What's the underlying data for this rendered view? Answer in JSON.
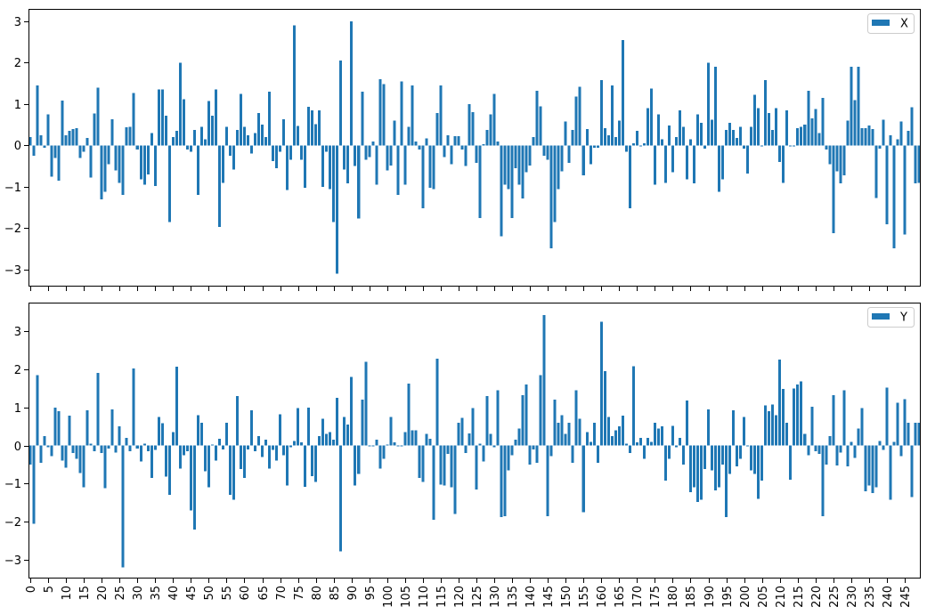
{
  "figure": {
    "background": "#ffffff"
  },
  "chart_data": [
    {
      "type": "bar",
      "grid": false,
      "legend": "top-right",
      "categories": [
        0,
        1,
        2,
        3,
        4,
        5,
        6,
        7,
        8,
        9,
        10,
        11,
        12,
        13,
        14,
        15,
        16,
        17,
        18,
        19,
        20,
        21,
        22,
        23,
        24,
        25,
        26,
        27,
        28,
        29,
        30,
        31,
        32,
        33,
        34,
        35,
        36,
        37,
        38,
        39,
        40,
        41,
        42,
        43,
        44,
        45,
        46,
        47,
        48,
        49,
        50,
        51,
        52,
        53,
        54,
        55,
        56,
        57,
        58,
        59,
        60,
        61,
        62,
        63,
        64,
        65,
        66,
        67,
        68,
        69,
        70,
        71,
        72,
        73,
        74,
        75,
        76,
        77,
        78,
        79,
        80,
        81,
        82,
        83,
        84,
        85,
        86,
        87,
        88,
        89,
        90,
        91,
        92,
        93,
        94,
        95,
        96,
        97,
        98,
        99,
        100,
        101,
        102,
        103,
        104,
        105,
        106,
        107,
        108,
        109,
        110,
        111,
        112,
        113,
        114,
        115,
        116,
        117,
        118,
        119,
        120,
        121,
        122,
        123,
        124,
        125,
        126,
        127,
        128,
        129,
        130,
        131,
        132,
        133,
        134,
        135,
        136,
        137,
        138,
        139,
        140,
        141,
        142,
        143,
        144,
        145,
        146,
        147,
        148,
        149,
        150,
        151,
        152,
        153,
        154,
        155,
        156,
        157,
        158,
        159,
        160,
        161,
        162,
        163,
        164,
        165,
        166,
        167,
        168,
        169,
        170,
        171,
        172,
        173,
        174,
        175,
        176,
        177,
        178,
        179,
        180,
        181,
        182,
        183,
        184,
        185,
        186,
        187,
        188,
        189,
        190,
        191,
        192,
        193,
        194,
        195,
        196,
        197,
        198,
        199,
        200,
        201,
        202,
        203,
        204,
        205,
        206,
        207,
        208,
        209,
        210,
        211,
        212,
        213,
        214,
        215,
        216,
        217,
        218,
        219,
        220,
        221,
        222,
        223,
        224,
        225,
        226,
        227,
        228,
        229,
        230,
        231,
        232,
        233,
        234,
        235,
        236,
        237,
        238,
        239,
        240,
        241,
        242,
        243,
        244,
        245,
        246,
        247,
        248,
        249
      ],
      "series": [
        {
          "name": "X",
          "color": "#1f77b4",
          "values": [
            0.2,
            -0.25,
            1.45,
            0.25,
            -0.05,
            0.75,
            -0.75,
            -0.3,
            -0.85,
            1.08,
            0.25,
            0.35,
            0.4,
            0.42,
            -0.3,
            -0.15,
            0.18,
            -0.78,
            0.77,
            1.4,
            -1.3,
            -1.12,
            -0.45,
            0.63,
            -0.6,
            -0.9,
            -1.2,
            0.44,
            0.45,
            1.27,
            -0.1,
            -0.82,
            -0.95,
            -0.7,
            0.3,
            -0.98,
            1.35,
            1.35,
            0.72,
            -1.85,
            0.2,
            0.35,
            2.0,
            1.12,
            -0.1,
            -0.15,
            0.37,
            -1.2,
            0.45,
            0.15,
            1.07,
            0.72,
            1.35,
            -1.97,
            -0.9,
            0.45,
            -0.25,
            -0.58,
            0.37,
            1.25,
            0.45,
            0.25,
            -0.2,
            0.3,
            0.78,
            0.5,
            0.2,
            1.3,
            -0.38,
            -0.55,
            -0.15,
            0.63,
            -1.08,
            -0.35,
            2.9,
            0.47,
            -0.35,
            -1.02,
            0.93,
            0.85,
            0.52,
            0.85,
            -1.0,
            -0.15,
            -1.05,
            -1.85,
            -3.1,
            2.05,
            -0.58,
            -0.92,
            3.0,
            -0.5,
            -1.77,
            1.3,
            -0.35,
            -0.28,
            0.1,
            -0.95,
            1.6,
            1.48,
            -0.6,
            -0.48,
            0.6,
            -1.2,
            1.55,
            -0.95,
            0.45,
            1.45,
            0.1,
            -0.1,
            -1.52,
            0.17,
            -1.02,
            -1.05,
            0.78,
            1.45,
            -0.28,
            0.25,
            -0.45,
            0.22,
            0.22,
            -0.1,
            -0.5,
            1.0,
            0.8,
            -0.42,
            -1.75,
            0.03,
            0.38,
            0.75,
            1.25,
            0.1,
            -2.2,
            -0.95,
            -1.05,
            -1.75,
            -0.55,
            -0.95,
            -1.28,
            -0.65,
            -0.48,
            0.2,
            1.32,
            0.95,
            -0.25,
            -0.35,
            -2.48,
            -1.85,
            -1.05,
            -0.62,
            0.58,
            -0.42,
            0.38,
            1.18,
            1.42,
            -0.72,
            0.4,
            -0.45,
            -0.05,
            -0.05,
            1.58,
            0.42,
            0.25,
            1.45,
            0.2,
            0.6,
            2.55,
            -0.15,
            -1.52,
            0.05,
            0.35,
            -0.02,
            0.05,
            0.9,
            1.37,
            -0.95,
            0.75,
            0.15,
            -0.9,
            0.48,
            -0.65,
            0.2,
            0.85,
            0.45,
            -0.82,
            0.15,
            -0.92,
            0.75,
            0.55,
            -0.08,
            2.0,
            0.62,
            1.9,
            -1.12,
            -0.82,
            0.38,
            0.55,
            0.38,
            0.18,
            0.45,
            -0.08,
            -0.68,
            0.45,
            1.22,
            0.9,
            -0.02,
            1.58,
            0.78,
            0.38,
            0.9,
            -0.4,
            -0.9,
            0.85,
            -0.02,
            -0.02,
            0.42,
            0.45,
            0.5,
            1.32,
            0.65,
            0.88,
            0.3,
            1.15,
            -0.1,
            -0.45,
            -2.12,
            -0.62,
            -0.92,
            -0.72,
            0.6,
            1.9,
            1.1,
            1.9,
            0.42,
            0.42,
            0.48,
            0.4,
            -1.27,
            -0.08,
            0.62,
            -1.9,
            0.25,
            -2.48,
            0.15,
            0.58,
            -2.15,
            0.35,
            0.92,
            -0.92,
            -0.9
          ]
        }
      ],
      "xlim": [
        -0.5,
        249.5
      ],
      "ylim": [
        -3.41,
        3.3
      ],
      "yticks": [
        -3,
        -2,
        -1,
        0,
        1,
        2,
        3
      ],
      "ytick_labels": [
        "−3",
        "−2",
        "−1",
        "0",
        "1",
        "2",
        "3"
      ],
      "xticks": [
        0,
        5,
        10,
        15,
        20,
        25,
        30,
        35,
        40,
        45,
        50,
        55,
        60,
        65,
        70,
        75,
        80,
        85,
        90,
        95,
        100,
        105,
        110,
        115,
        120,
        125,
        130,
        135,
        140,
        145,
        150,
        155,
        160,
        165,
        170,
        175,
        180,
        185,
        190,
        195,
        200,
        205,
        210,
        215,
        220,
        225,
        230,
        235,
        240,
        245
      ]
    },
    {
      "type": "bar",
      "grid": false,
      "legend": "top-right",
      "categories": [
        0,
        1,
        2,
        3,
        4,
        5,
        6,
        7,
        8,
        9,
        10,
        11,
        12,
        13,
        14,
        15,
        16,
        17,
        18,
        19,
        20,
        21,
        22,
        23,
        24,
        25,
        26,
        27,
        28,
        29,
        30,
        31,
        32,
        33,
        34,
        35,
        36,
        37,
        38,
        39,
        40,
        41,
        42,
        43,
        44,
        45,
        46,
        47,
        48,
        49,
        50,
        51,
        52,
        53,
        54,
        55,
        56,
        57,
        58,
        59,
        60,
        61,
        62,
        63,
        64,
        65,
        66,
        67,
        68,
        69,
        70,
        71,
        72,
        73,
        74,
        75,
        76,
        77,
        78,
        79,
        80,
        81,
        82,
        83,
        84,
        85,
        86,
        87,
        88,
        89,
        90,
        91,
        92,
        93,
        94,
        95,
        96,
        97,
        98,
        99,
        100,
        101,
        102,
        103,
        104,
        105,
        106,
        107,
        108,
        109,
        110,
        111,
        112,
        113,
        114,
        115,
        116,
        117,
        118,
        119,
        120,
        121,
        122,
        123,
        124,
        125,
        126,
        127,
        128,
        129,
        130,
        131,
        132,
        133,
        134,
        135,
        136,
        137,
        138,
        139,
        140,
        141,
        142,
        143,
        144,
        145,
        146,
        147,
        148,
        149,
        150,
        151,
        152,
        153,
        154,
        155,
        156,
        157,
        158,
        159,
        160,
        161,
        162,
        163,
        164,
        165,
        166,
        167,
        168,
        169,
        170,
        171,
        172,
        173,
        174,
        175,
        176,
        177,
        178,
        179,
        180,
        181,
        182,
        183,
        184,
        185,
        186,
        187,
        188,
        189,
        190,
        191,
        192,
        193,
        194,
        195,
        196,
        197,
        198,
        199,
        200,
        201,
        202,
        203,
        204,
        205,
        206,
        207,
        208,
        209,
        210,
        211,
        212,
        213,
        214,
        215,
        216,
        217,
        218,
        219,
        220,
        221,
        222,
        223,
        224,
        225,
        226,
        227,
        228,
        229,
        230,
        231,
        232,
        233,
        234,
        235,
        236,
        237,
        238,
        239,
        240,
        241,
        242,
        243,
        244,
        245,
        246,
        247,
        248,
        249
      ],
      "series": [
        {
          "name": "Y",
          "color": "#1f77b4",
          "values": [
            -0.5,
            -2.05,
            1.85,
            -0.45,
            0.25,
            -0.05,
            -0.28,
            1.0,
            0.9,
            -0.4,
            -0.58,
            0.78,
            -0.2,
            -0.35,
            -0.72,
            -1.1,
            0.92,
            0.05,
            -0.15,
            1.9,
            -0.2,
            -1.12,
            -0.08,
            0.95,
            -0.18,
            0.5,
            -3.2,
            0.2,
            -0.15,
            2.02,
            -0.08,
            -0.42,
            0.05,
            -0.15,
            -0.85,
            -0.12,
            0.75,
            0.58,
            -0.82,
            -1.3,
            0.35,
            2.07,
            -0.6,
            -0.25,
            -0.15,
            -1.7,
            -2.2,
            0.8,
            0.6,
            -0.68,
            -1.1,
            0.02,
            -0.4,
            0.18,
            -0.1,
            0.6,
            -1.3,
            -1.42,
            1.3,
            -0.62,
            -0.85,
            -0.1,
            0.92,
            -0.15,
            0.25,
            -0.3,
            0.15,
            -0.6,
            -0.12,
            -0.4,
            0.82,
            -0.25,
            -1.05,
            -0.05,
            0.12,
            0.98,
            0.08,
            -1.08,
            1.0,
            -0.8,
            -0.95,
            0.25,
            0.7,
            0.3,
            0.35,
            0.15,
            1.25,
            -2.78,
            0.75,
            0.55,
            1.8,
            -1.05,
            -0.75,
            1.2,
            2.2,
            -0.02,
            -0.02,
            0.15,
            -0.6,
            -0.35,
            0.02,
            0.75,
            0.08,
            -0.02,
            -0.02,
            0.35,
            1.62,
            0.4,
            0.4,
            -0.85,
            -0.95,
            0.3,
            0.18,
            -1.95,
            2.28,
            -1.03,
            -1.05,
            -0.22,
            -1.1,
            -1.8,
            0.6,
            0.72,
            -0.2,
            0.32,
            0.98,
            -1.15,
            0.05,
            -0.42,
            1.3,
            0.3,
            -0.05,
            1.45,
            -1.88,
            -1.85,
            -0.65,
            -0.25,
            0.15,
            0.45,
            1.32,
            1.6,
            -0.5,
            -0.1,
            -0.45,
            1.85,
            3.42,
            -1.85,
            -0.28,
            1.2,
            0.6,
            0.8,
            0.3,
            0.6,
            -0.45,
            1.45,
            0.7,
            -1.75,
            0.35,
            0.1,
            0.6,
            -0.45,
            3.25,
            1.95,
            0.75,
            0.25,
            0.4,
            0.5,
            0.78,
            0.05,
            -0.2,
            2.08,
            0.08,
            0.2,
            -0.35,
            0.2,
            0.1,
            0.6,
            0.45,
            0.5,
            -0.92,
            -0.35,
            0.52,
            -0.05,
            0.2,
            -0.5,
            1.18,
            -1.22,
            -1.1,
            -1.48,
            -1.42,
            -0.62,
            0.95,
            -0.65,
            -1.18,
            -1.1,
            -0.5,
            -1.88,
            -0.75,
            0.92,
            -0.55,
            -0.35,
            0.75,
            -0.02,
            -0.65,
            -0.75,
            -1.4,
            -0.92,
            1.05,
            0.9,
            1.08,
            0.8,
            2.25,
            1.48,
            0.6,
            -0.9,
            1.5,
            1.6,
            1.68,
            0.3,
            -0.25,
            1.02,
            -0.15,
            -0.22,
            -1.85,
            -0.5,
            0.25,
            1.32,
            -0.52,
            -0.18,
            1.45,
            -0.55,
            0.1,
            -0.32,
            0.45,
            0.98,
            -1.2,
            -1.05,
            -1.25,
            -1.1,
            0.12,
            -0.12,
            1.52,
            -1.42,
            0.1,
            1.12,
            -0.28,
            1.22,
            0.6,
            -1.35,
            0.6,
            0.6
          ]
        }
      ],
      "xlim": [
        -0.5,
        249.5
      ],
      "ylim": [
        -3.49,
        3.75
      ],
      "yticks": [
        -3,
        -2,
        -1,
        0,
        1,
        2,
        3
      ],
      "ytick_labels": [
        "−3",
        "−2",
        "−1",
        "0",
        "1",
        "2",
        "3"
      ],
      "xticks": [
        0,
        5,
        10,
        15,
        20,
        25,
        30,
        35,
        40,
        45,
        50,
        55,
        60,
        65,
        70,
        75,
        80,
        85,
        90,
        95,
        100,
        105,
        110,
        115,
        120,
        125,
        130,
        135,
        140,
        145,
        150,
        155,
        160,
        165,
        170,
        175,
        180,
        185,
        190,
        195,
        200,
        205,
        210,
        215,
        220,
        225,
        230,
        235,
        240,
        245
      ],
      "xtick_labels": [
        "0",
        "5",
        "10",
        "15",
        "20",
        "25",
        "30",
        "35",
        "40",
        "45",
        "50",
        "55",
        "60",
        "65",
        "70",
        "75",
        "80",
        "85",
        "90",
        "95",
        "100",
        "105",
        "110",
        "115",
        "120",
        "125",
        "130",
        "135",
        "140",
        "145",
        "150",
        "155",
        "160",
        "165",
        "170",
        "175",
        "180",
        "185",
        "190",
        "195",
        "200",
        "205",
        "210",
        "215",
        "220",
        "225",
        "230",
        "235",
        "240",
        "245"
      ]
    }
  ]
}
